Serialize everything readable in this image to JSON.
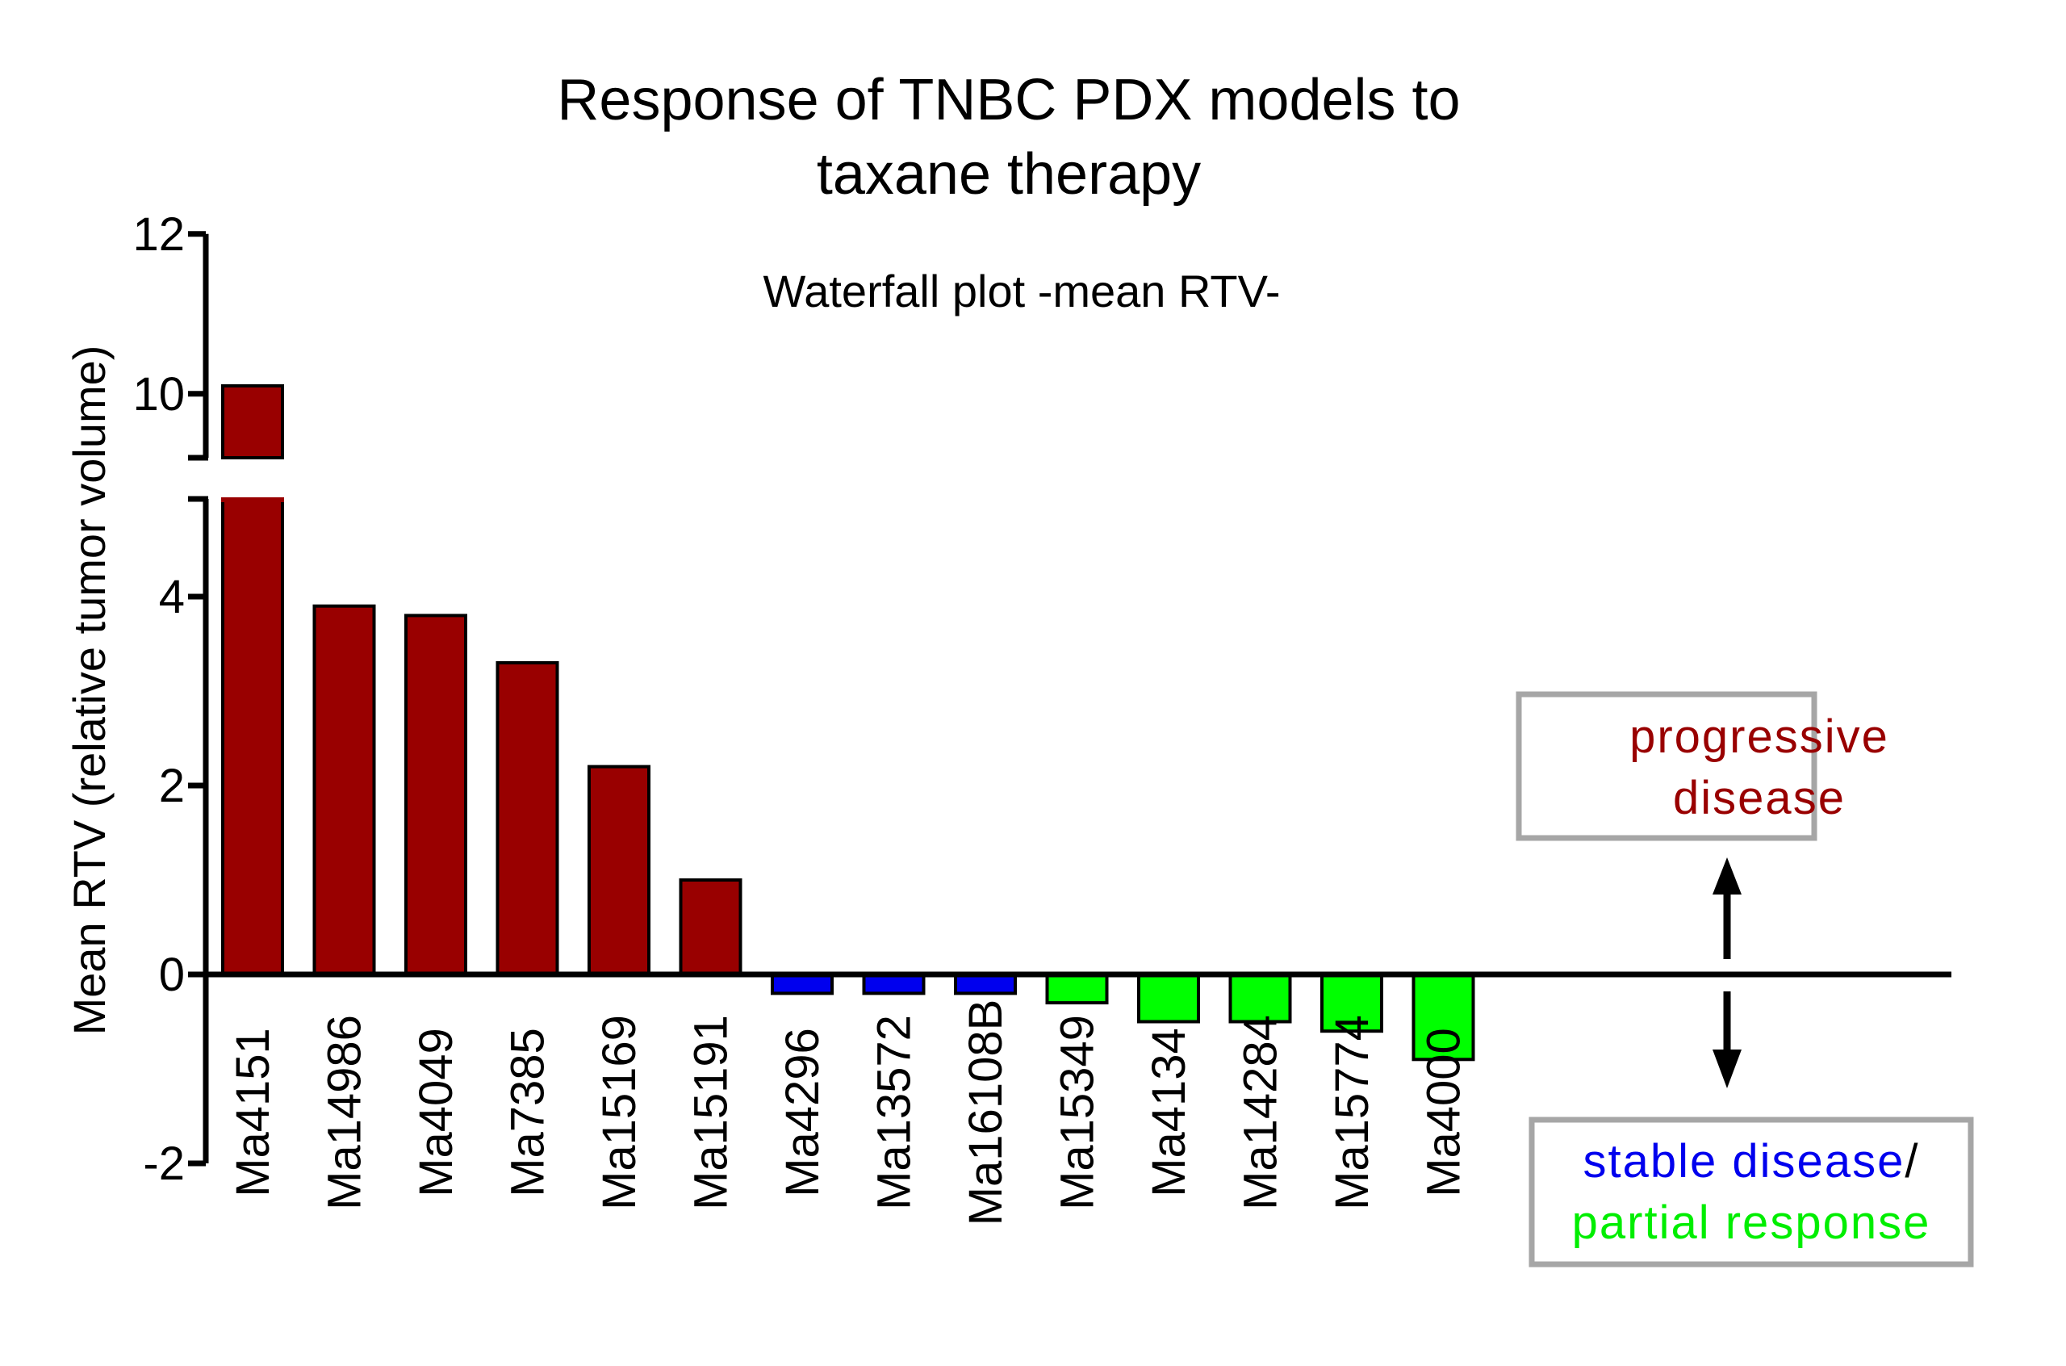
{
  "chart_data": {
    "type": "bar",
    "title": "Response of TNBC PDX models to taxane therapy",
    "title_lines": [
      "Response of TNBC PDX models to",
      "taxane therapy"
    ],
    "subtitle": "Waterfall plot -mean RTV-",
    "ylabel": "Mean RTV (relative tumor volume)",
    "xlabel": "",
    "ylim": [
      -2,
      12
    ],
    "axis_break": [
      5,
      9.2
    ],
    "ytick_values": [
      -2,
      0,
      2,
      4,
      10,
      12
    ],
    "ytick_labels": [
      "-2",
      "0",
      "2",
      "4",
      "10",
      "12"
    ],
    "categories": [
      "Ma4151",
      "Ma14986",
      "Ma4049",
      "Ma7385",
      "Ma15169",
      "Ma15191",
      "Ma4296",
      "Ma13572",
      "Ma16108B",
      "Ma15349",
      "Ma4134",
      "Ma14284",
      "Ma15774",
      "Ma4000"
    ],
    "values": [
      10.1,
      3.9,
      3.8,
      3.3,
      2.2,
      1.0,
      -0.2,
      -0.2,
      -0.2,
      -0.3,
      -0.5,
      -0.5,
      -0.6,
      -0.9
    ],
    "response_groups": [
      "progressive disease",
      "progressive disease",
      "progressive disease",
      "progressive disease",
      "progressive disease",
      "progressive disease",
      "stable disease",
      "stable disease",
      "stable disease",
      "partial response",
      "partial response",
      "partial response",
      "partial response",
      "partial response"
    ],
    "colors": {
      "progressive disease": "#990000",
      "stable disease": "#0000ee",
      "partial response": "#00ff00",
      "box_border": "#a6a6a6",
      "axis": "#000000"
    },
    "grid": false,
    "legend": {
      "progressive_lines": [
        "progressive",
        "disease"
      ],
      "stable": "stable disease",
      "slash": "/",
      "partial": "partial response"
    }
  }
}
